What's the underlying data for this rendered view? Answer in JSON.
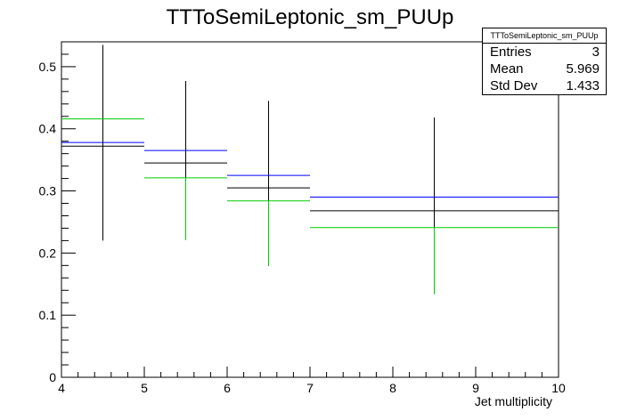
{
  "chart_data": {
    "type": "histogram",
    "title": "TTToSemiLeptonic_sm_PUUp",
    "xlabel": "Jet multiplicity",
    "ylabel": "",
    "xlim": [
      4,
      10
    ],
    "ylim": [
      0,
      0.54
    ],
    "x_ticks": [
      "4",
      "5",
      "6",
      "7",
      "8",
      "9",
      "10"
    ],
    "y_ticks": [
      "0",
      "0.1",
      "0.2",
      "0.3",
      "0.4",
      "0.5"
    ],
    "bins": [
      {
        "low": 4,
        "high": 5,
        "center": 4.5
      },
      {
        "low": 5,
        "high": 6,
        "center": 5.5
      },
      {
        "low": 6,
        "high": 7,
        "center": 6.5
      },
      {
        "low": 7,
        "high": 10,
        "center": 8.5
      }
    ],
    "series": [
      {
        "color": "#000000",
        "values": [
          0.372,
          0.345,
          0.305,
          0.268
        ],
        "err_low": [
          0.152,
          0.11,
          0.12,
          0.125
        ],
        "err_high": [
          0.163,
          0.132,
          0.14,
          0.15
        ]
      },
      {
        "color": "#0000ff",
        "values": [
          0.378,
          0.365,
          0.325,
          0.29
        ]
      },
      {
        "color": "#00cc00",
        "values": [
          0.416,
          0.321,
          0.284,
          0.241
        ],
        "err_low": [
          0.0,
          0.1,
          0.105,
          0.107
        ],
        "err_high": [
          0.0,
          0.0,
          0.0,
          0.0
        ]
      }
    ],
    "grid": false,
    "legend": "none"
  },
  "stats": {
    "title": "TTToSemiLeptonic_sm_PUUp",
    "rows": [
      {
        "label": "Entries",
        "value": "3"
      },
      {
        "label": "Mean",
        "value": "5.969"
      },
      {
        "label": "Std Dev",
        "value": "1.433"
      }
    ]
  }
}
